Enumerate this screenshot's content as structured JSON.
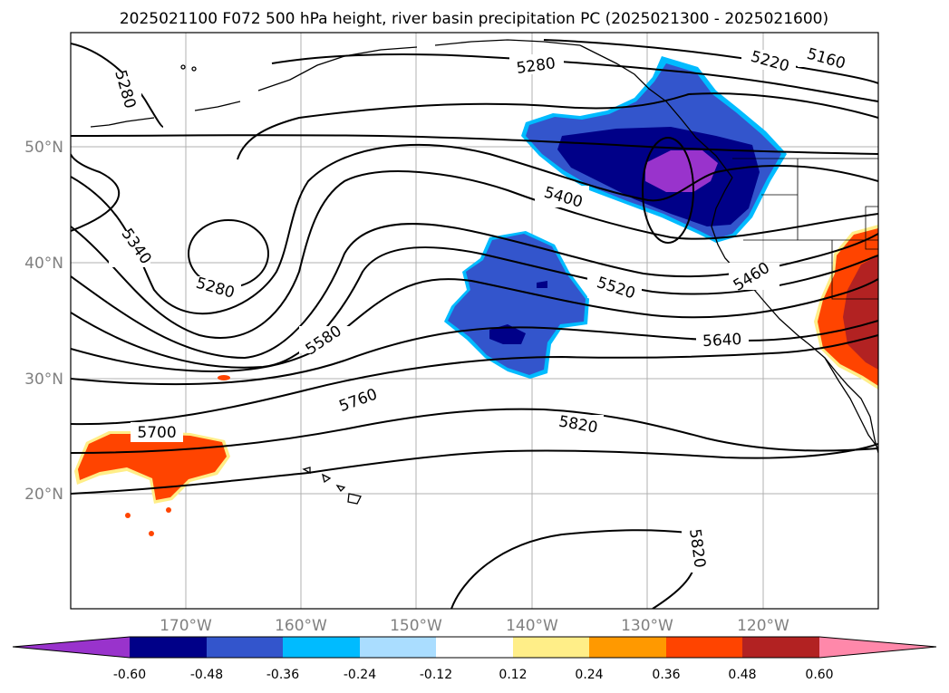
{
  "title": "2025021100 F072 500 hPa height, river basin precipitation PC (2025021300 - 2025021600)",
  "lat_labels": [
    "50°N",
    "40°N",
    "30°N",
    "20°N"
  ],
  "lon_labels": [
    "170°W",
    "160°W",
    "150°W",
    "140°W",
    "130°W",
    "120°W"
  ],
  "contour_labels": [
    "5280",
    "5280",
    "5220",
    "5160",
    "5280",
    "5340",
    "5400",
    "5520",
    "5460",
    "5580",
    "5640",
    "5700",
    "5760",
    "5820",
    "5820"
  ],
  "colorbar": {
    "labels": [
      "-0.60",
      "-0.48",
      "-0.36",
      "-0.24",
      "-0.12",
      "0.12",
      "0.24",
      "0.36",
      "0.48",
      "0.60"
    ],
    "colors": [
      "#9933cc",
      "#000088",
      "#3355cc",
      "#00bbff",
      "#aaddff",
      "#ffffff",
      "#ffee88",
      "#ff9900",
      "#ff4400",
      "#b22222",
      "#ff88aa"
    ]
  },
  "colors": {
    "neg_strong": "#9933cc",
    "neg_very": "#000088",
    "neg_mid": "#3355cc",
    "neg_light": "#00bbff",
    "pos_mid": "#ff4400",
    "pos_strong": "#b22222"
  }
}
